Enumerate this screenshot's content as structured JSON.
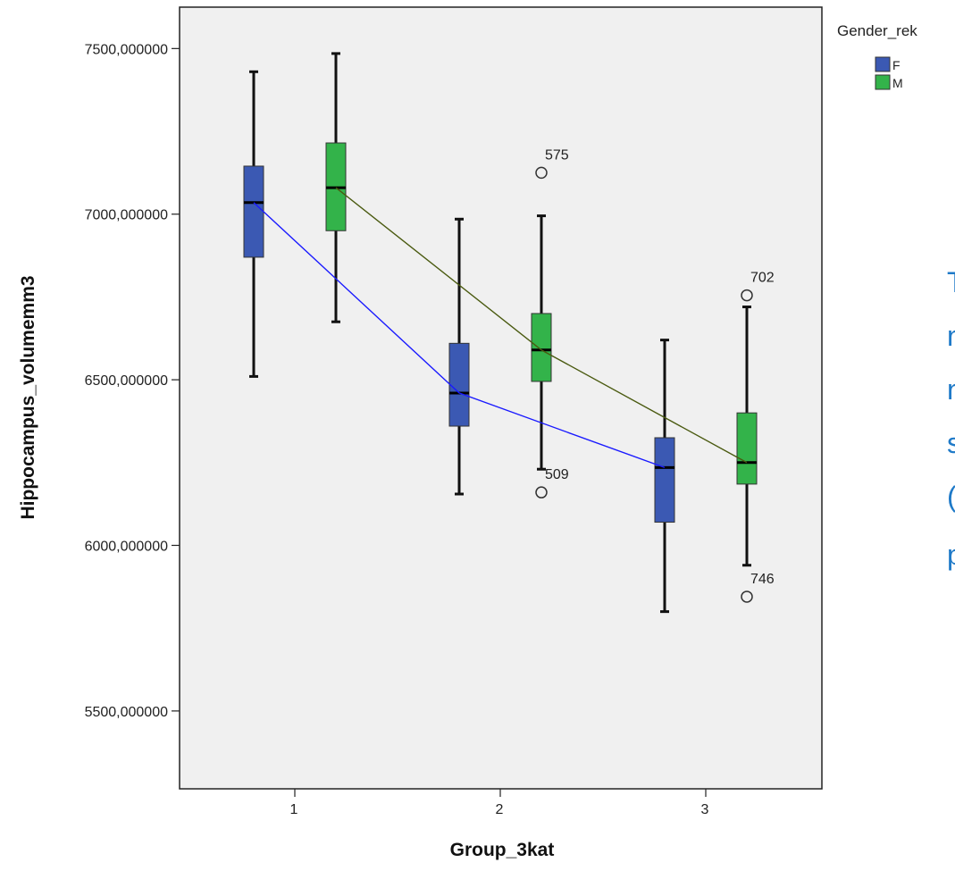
{
  "chart_data": {
    "type": "box",
    "xlabel": "Group_3kat",
    "ylabel": "Hippocampus_volumemm3",
    "categories": [
      "1",
      "2",
      "3"
    ],
    "yticks": [
      "5500,000000",
      "6000,000000",
      "6500,000000",
      "7000,000000",
      "7500,000000"
    ],
    "ytick_values": [
      5500,
      6000,
      6500,
      7000,
      7500
    ],
    "ylim": [
      5265,
      7625
    ],
    "legend": {
      "title": "Gender_rek",
      "placement": "top-right outside plot"
    },
    "series": [
      {
        "name": "F",
        "color": "#3b59b3",
        "line_color": "#1a1aff",
        "boxes": [
          {
            "category": "1",
            "whisker_low": 6510,
            "q1": 6870,
            "median": 7035,
            "q3": 7145,
            "whisker_high": 7430
          },
          {
            "category": "2",
            "whisker_low": 6155,
            "q1": 6360,
            "median": 6460,
            "q3": 6610,
            "whisker_high": 6985
          },
          {
            "category": "3",
            "whisker_low": 5800,
            "q1": 6070,
            "median": 6235,
            "q3": 6325,
            "whisker_high": 6620
          }
        ],
        "outliers": []
      },
      {
        "name": "M",
        "color": "#33b34a",
        "line_color": "#4a5a10",
        "boxes": [
          {
            "category": "1",
            "whisker_low": 6675,
            "q1": 6950,
            "median": 7080,
            "q3": 7215,
            "whisker_high": 7485
          },
          {
            "category": "2",
            "whisker_low": 6230,
            "q1": 6495,
            "median": 6590,
            "q3": 6700,
            "whisker_high": 6995
          },
          {
            "category": "3",
            "whisker_low": 5940,
            "q1": 6185,
            "median": 6250,
            "q3": 6400,
            "whisker_high": 6720
          }
        ],
        "outliers": [
          {
            "category": "2",
            "value": 7125,
            "label": "575"
          },
          {
            "category": "2",
            "value": 6160,
            "label": "509"
          },
          {
            "category": "3",
            "value": 6755,
            "label": "702"
          },
          {
            "category": "3",
            "value": 5845,
            "label": "746"
          }
        ]
      }
    ],
    "grid": false,
    "background": "#f0f0f0"
  },
  "side_text": {
    "lines": [
      "T",
      "n",
      "n",
      "s",
      "(",
      "p"
    ]
  }
}
